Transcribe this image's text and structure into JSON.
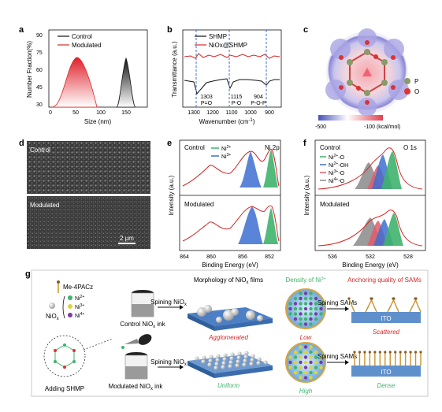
{
  "colors": {
    "control": "#111111",
    "modulated": "#d62728",
    "blue": "#3d6fd1",
    "green": "#3fb36b",
    "pink": "#e05a6a",
    "grey": "#8a8a8a",
    "itoBlue": "#5f90cc"
  },
  "panels": {
    "a": "a",
    "b": "b",
    "c": "c",
    "d": "d",
    "e": "e",
    "f": "f",
    "g": "g"
  },
  "panel_a": {
    "ylabel": "Number Fraction(%)",
    "xlabel": "Size (nm)",
    "xticks": [
      "0",
      "50",
      "100",
      "150"
    ],
    "yticks": [
      "30",
      "45",
      "60",
      "75",
      "90"
    ],
    "legend": [
      "Control",
      "Modulated"
    ]
  },
  "panel_b": {
    "ylabel": "Transmittance (a.u.)",
    "xlabel": "Wavenumber (cm",
    "xticks": [
      "1300",
      "1200",
      "1100",
      "1000",
      "900"
    ],
    "legend": [
      "SHMP",
      "NiOx@SHMP"
    ],
    "peaks": [
      {
        "value": "1303",
        "label": "P=O"
      },
      {
        "value": "1115",
        "label": "P-O"
      },
      {
        "value": "904",
        "label": "P-O-P"
      }
    ]
  },
  "panel_c": {
    "atoms": [
      "P",
      "O"
    ],
    "cbar_min": "-500",
    "cbar_max": "-100 (kcal/mol)"
  },
  "panel_d": {
    "top": "Control",
    "bottom": "Modulated",
    "scale": "2 μm"
  },
  "panel_e": {
    "title": "Ni 2p",
    "top": "Control",
    "bottom": "Modulated",
    "legend": [
      "Ni",
      "Ni"
    ],
    "sups": [
      "2+",
      "3+"
    ],
    "ylabel": "Intensity (a.u.)",
    "xlabel": "Binding Energy (eV)",
    "xticks": [
      "864",
      "860",
      "856",
      "852"
    ]
  },
  "panel_f": {
    "title": "O 1s",
    "top": "Control",
    "bottom": "Modulated",
    "legend": [
      {
        "base": "Ni",
        "sup": "2+",
        "tail": "-O"
      },
      {
        "base": "Ni",
        "sup": "2+",
        "tail": "-OH"
      },
      {
        "base": "Ni",
        "sup": "3+",
        "tail": "-O"
      },
      {
        "base": "Ni",
        "sup": "4+",
        "tail": "-O"
      }
    ],
    "ylabel": "Intensity (a.u.)",
    "xlabel": "Binding Energy (eV)",
    "xticks": [
      "536",
      "532",
      "528"
    ]
  },
  "panel_g": {
    "me4pacz": "Me-4PACz",
    "nio_ions": [
      {
        "base": "Ni",
        "sup": "2+"
      },
      {
        "base": "Ni",
        "sup": "3+"
      },
      {
        "base": "Ni",
        "sup": "4+"
      }
    ],
    "niox": "NiO",
    "adding": "Adding SHMP",
    "control_ink": "Control NiO",
    "modulated_ink": "Modulated NiO",
    "ink_suffix": " ink",
    "spin_nio": "Spining NiO",
    "spin_sams": "Spining SAMs",
    "head_morph": "Morphology of NiO",
    "head_morph_suffix": " films",
    "head_density": "Density of Ni",
    "head_density_sup": "3+",
    "head_anchor": "Anchoring quality of SAMs",
    "agglomerated": "Agglomerated",
    "low": "Low",
    "scattered": "Scattered",
    "uniform": "Uniform",
    "high": "High",
    "dense": "Dense",
    "ito": "ITO"
  }
}
